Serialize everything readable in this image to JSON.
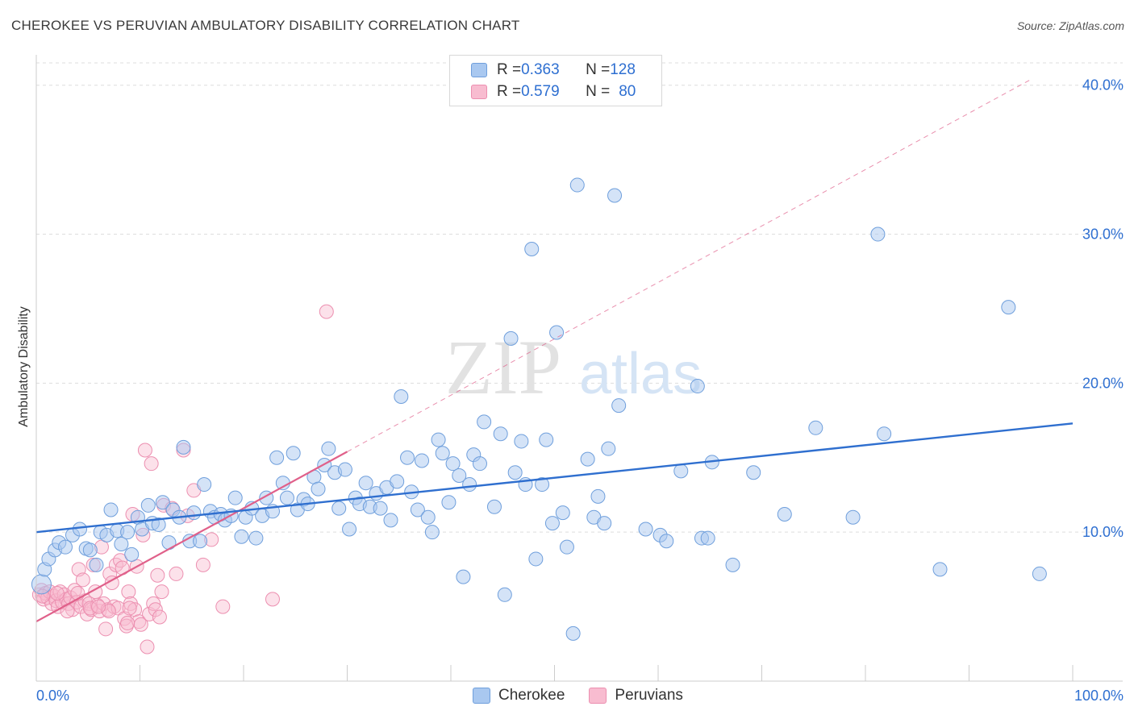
{
  "title": "CHEROKEE VS PERUVIAN AMBULATORY DISABILITY CORRELATION CHART",
  "source": "Source: ZipAtlas.com",
  "watermark": {
    "zip": "ZIP",
    "atlas": "atlas"
  },
  "legend": {
    "rows": [
      {
        "r_label": "R = ",
        "r_value": "0.363",
        "n_label": "N = ",
        "n_value": "128"
      },
      {
        "r_label": "R = ",
        "r_value": "0.579",
        "n_label": "N = ",
        "n_value": "80"
      }
    ]
  },
  "colors": {
    "cherokee_fill": "#a9c8f0",
    "cherokee_stroke": "#6f9fdc",
    "cherokee_line": "#2f6fcf",
    "peruvian_fill": "#f8bcd0",
    "peruvian_stroke": "#ec8fb0",
    "peruvian_line": "#e0608a",
    "tick_label": "#2e6fd1",
    "grid": "#dddddd"
  },
  "chart_data": {
    "type": "scatter",
    "ylabel": "Ambulatory Disability",
    "xlim": [
      0,
      100
    ],
    "ylim": [
      0,
      41.5
    ],
    "x_tick_labels": [
      "0.0%",
      "100.0%"
    ],
    "y_ticks": [
      10,
      20,
      30,
      40
    ],
    "y_tick_labels": [
      "10.0%",
      "20.0%",
      "30.0%",
      "40.0%"
    ],
    "grid": "horizontal dashed",
    "legend_position": "bottom",
    "series": [
      {
        "name": "Cherokee",
        "trend": {
          "x0": 0,
          "y0": 10.0,
          "x1": 100,
          "y1": 17.3
        },
        "points": [
          [
            0.5,
            6.5
          ],
          [
            0.8,
            7.5
          ],
          [
            1.2,
            8.2
          ],
          [
            1.8,
            8.8
          ],
          [
            2.2,
            9.3
          ],
          [
            2.8,
            9.0
          ],
          [
            3.5,
            9.8
          ],
          [
            4.2,
            10.2
          ],
          [
            4.8,
            8.9
          ],
          [
            5.2,
            8.8
          ],
          [
            5.8,
            7.8
          ],
          [
            6.2,
            10.0
          ],
          [
            6.8,
            9.8
          ],
          [
            7.2,
            11.5
          ],
          [
            7.8,
            10.1
          ],
          [
            8.2,
            9.2
          ],
          [
            8.8,
            10.0
          ],
          [
            9.2,
            8.5
          ],
          [
            9.8,
            11.0
          ],
          [
            10.2,
            10.2
          ],
          [
            10.8,
            11.8
          ],
          [
            11.2,
            10.6
          ],
          [
            11.8,
            10.5
          ],
          [
            12.2,
            12.0
          ],
          [
            12.8,
            9.3
          ],
          [
            13.2,
            11.5
          ],
          [
            13.8,
            11.0
          ],
          [
            14.2,
            15.7
          ],
          [
            14.8,
            9.4
          ],
          [
            15.2,
            11.3
          ],
          [
            15.8,
            9.4
          ],
          [
            16.2,
            13.2
          ],
          [
            16.8,
            11.4
          ],
          [
            17.2,
            11.0
          ],
          [
            17.8,
            11.2
          ],
          [
            18.2,
            10.8
          ],
          [
            18.8,
            11.1
          ],
          [
            19.2,
            12.3
          ],
          [
            19.8,
            9.7
          ],
          [
            20.2,
            11.0
          ],
          [
            20.8,
            11.6
          ],
          [
            21.2,
            9.6
          ],
          [
            21.8,
            11.1
          ],
          [
            22.2,
            12.3
          ],
          [
            22.8,
            11.4
          ],
          [
            23.2,
            15.0
          ],
          [
            23.8,
            13.3
          ],
          [
            24.2,
            12.3
          ],
          [
            24.8,
            15.3
          ],
          [
            25.2,
            11.5
          ],
          [
            25.8,
            12.2
          ],
          [
            26.2,
            11.9
          ],
          [
            26.8,
            13.7
          ],
          [
            27.2,
            12.9
          ],
          [
            27.8,
            14.5
          ],
          [
            28.2,
            15.6
          ],
          [
            28.8,
            14.0
          ],
          [
            29.2,
            11.6
          ],
          [
            29.8,
            14.2
          ],
          [
            30.2,
            10.2
          ],
          [
            30.8,
            12.3
          ],
          [
            31.2,
            11.9
          ],
          [
            31.8,
            13.3
          ],
          [
            32.2,
            11.7
          ],
          [
            32.8,
            12.6
          ],
          [
            33.2,
            11.6
          ],
          [
            33.8,
            13.0
          ],
          [
            34.2,
            10.8
          ],
          [
            34.8,
            13.4
          ],
          [
            35.2,
            19.1
          ],
          [
            35.8,
            15.0
          ],
          [
            36.2,
            12.7
          ],
          [
            36.8,
            11.5
          ],
          [
            37.2,
            14.8
          ],
          [
            37.8,
            11.0
          ],
          [
            38.2,
            10.0
          ],
          [
            38.8,
            16.2
          ],
          [
            39.2,
            15.3
          ],
          [
            39.8,
            12.0
          ],
          [
            40.2,
            14.6
          ],
          [
            40.8,
            13.8
          ],
          [
            41.2,
            7.0
          ],
          [
            41.8,
            13.2
          ],
          [
            42.2,
            15.2
          ],
          [
            42.8,
            14.6
          ],
          [
            43.2,
            17.4
          ],
          [
            44.2,
            11.7
          ],
          [
            44.8,
            16.6
          ],
          [
            45.2,
            5.8
          ],
          [
            45.8,
            23.0
          ],
          [
            46.2,
            14.0
          ],
          [
            46.8,
            16.1
          ],
          [
            47.2,
            13.2
          ],
          [
            47.8,
            29.0
          ],
          [
            48.2,
            8.2
          ],
          [
            48.8,
            13.2
          ],
          [
            49.2,
            16.2
          ],
          [
            49.8,
            10.6
          ],
          [
            50.2,
            23.4
          ],
          [
            50.8,
            11.3
          ],
          [
            51.2,
            9.0
          ],
          [
            51.8,
            3.2
          ],
          [
            52.2,
            33.3
          ],
          [
            53.2,
            14.9
          ],
          [
            53.8,
            11.0
          ],
          [
            54.2,
            12.4
          ],
          [
            54.8,
            10.6
          ],
          [
            55.2,
            15.6
          ],
          [
            55.8,
            32.6
          ],
          [
            56.2,
            18.5
          ],
          [
            58.8,
            10.2
          ],
          [
            60.2,
            9.8
          ],
          [
            60.8,
            9.4
          ],
          [
            62.2,
            14.1
          ],
          [
            63.8,
            19.8
          ],
          [
            64.2,
            9.6
          ],
          [
            64.8,
            9.6
          ],
          [
            65.2,
            14.7
          ],
          [
            67.2,
            7.8
          ],
          [
            69.2,
            14.0
          ],
          [
            72.2,
            11.2
          ],
          [
            75.2,
            17.0
          ],
          [
            78.8,
            11.0
          ],
          [
            81.2,
            30.0
          ],
          [
            81.8,
            16.6
          ],
          [
            87.2,
            7.5
          ],
          [
            93.8,
            25.1
          ],
          [
            96.8,
            7.2
          ]
        ]
      },
      {
        "name": "Peruvians",
        "trend": {
          "x0": 0,
          "y0": 4.0,
          "x1": 30,
          "y1": 15.4,
          "ext_x1": 96,
          "ext_y1": 40.4
        },
        "points": [
          [
            0.3,
            5.8
          ],
          [
            0.5,
            6.1
          ],
          [
            0.7,
            5.5
          ],
          [
            0.9,
            5.9
          ],
          [
            1.1,
            5.6
          ],
          [
            1.3,
            6.0
          ],
          [
            1.5,
            5.2
          ],
          [
            1.7,
            5.7
          ],
          [
            1.9,
            5.4
          ],
          [
            2.1,
            5.0
          ],
          [
            2.3,
            6.0
          ],
          [
            2.5,
            5.3
          ],
          [
            2.7,
            5.8
          ],
          [
            2.9,
            5.5
          ],
          [
            3.1,
            5.2
          ],
          [
            3.3,
            5.6
          ],
          [
            3.5,
            4.8
          ],
          [
            3.7,
            6.1
          ],
          [
            3.9,
            5.3
          ],
          [
            4.1,
            7.5
          ],
          [
            4.3,
            5.0
          ],
          [
            4.5,
            6.8
          ],
          [
            4.7,
            5.4
          ],
          [
            4.9,
            4.5
          ],
          [
            5.1,
            5.2
          ],
          [
            5.3,
            4.8
          ],
          [
            5.5,
            7.8
          ],
          [
            5.7,
            6.0
          ],
          [
            5.9,
            5.1
          ],
          [
            6.1,
            4.7
          ],
          [
            6.3,
            9.0
          ],
          [
            6.5,
            5.2
          ],
          [
            6.7,
            3.5
          ],
          [
            6.9,
            4.8
          ],
          [
            7.1,
            7.2
          ],
          [
            7.3,
            6.6
          ],
          [
            7.5,
            5.0
          ],
          [
            7.7,
            7.8
          ],
          [
            7.9,
            4.9
          ],
          [
            8.1,
            8.1
          ],
          [
            8.3,
            7.6
          ],
          [
            8.5,
            4.2
          ],
          [
            8.7,
            3.7
          ],
          [
            8.9,
            6.0
          ],
          [
            9.1,
            5.2
          ],
          [
            9.3,
            11.2
          ],
          [
            9.5,
            4.8
          ],
          [
            9.7,
            7.7
          ],
          [
            9.9,
            4.0
          ],
          [
            10.1,
            3.8
          ],
          [
            10.3,
            9.8
          ],
          [
            10.5,
            15.5
          ],
          [
            10.7,
            2.3
          ],
          [
            10.9,
            4.5
          ],
          [
            11.1,
            14.6
          ],
          [
            11.3,
            5.2
          ],
          [
            11.5,
            4.8
          ],
          [
            11.7,
            7.1
          ],
          [
            11.9,
            4.3
          ],
          [
            12.1,
            6.0
          ],
          [
            12.3,
            11.8
          ],
          [
            13.1,
            11.6
          ],
          [
            13.5,
            7.2
          ],
          [
            14.2,
            15.5
          ],
          [
            14.6,
            11.1
          ],
          [
            15.2,
            12.8
          ],
          [
            16.1,
            7.8
          ],
          [
            16.9,
            9.5
          ],
          [
            18.0,
            5.0
          ],
          [
            22.8,
            5.5
          ],
          [
            28.0,
            24.8
          ],
          [
            5.2,
            4.9
          ],
          [
            7.0,
            4.7
          ],
          [
            8.8,
            3.9
          ],
          [
            2.0,
            5.9
          ],
          [
            3.0,
            4.7
          ],
          [
            4.0,
            5.9
          ],
          [
            6.0,
            5.0
          ],
          [
            9.0,
            4.9
          ],
          [
            0.6,
            5.7
          ]
        ]
      }
    ]
  },
  "bottom_legend": [
    {
      "label": "Cherokee"
    },
    {
      "label": "Peruvians"
    }
  ]
}
